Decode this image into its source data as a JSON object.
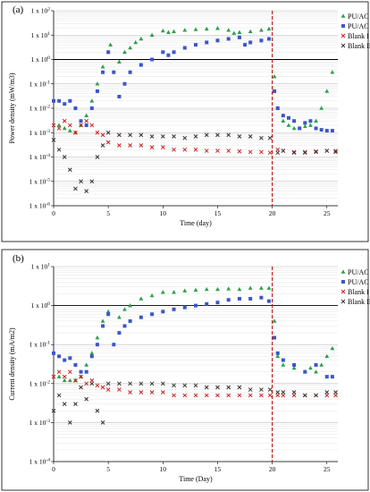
{
  "chart_data": [
    {
      "panel": "(a)",
      "type": "scatter",
      "xlabel": "Time (day)",
      "ylabel": "Power density (mW/m3)",
      "xlim": [
        0,
        26
      ],
      "ylim": [
        1e-06,
        100
      ],
      "yscale": "log",
      "xticks": [
        0,
        5,
        10,
        15,
        20,
        25
      ],
      "yticks": [
        {
          "value": 1e-06,
          "label": "1 x 10-6"
        },
        {
          "value": 1e-05,
          "label": "1 x 10-5"
        },
        {
          "value": 0.0001,
          "label": "1 x 10-4"
        },
        {
          "value": 0.001,
          "label": "1 x 10-3"
        },
        {
          "value": 0.01,
          "label": "1 x 10-2"
        },
        {
          "value": 0.1,
          "label": "1 x 10-1"
        },
        {
          "value": 1,
          "label": "1 x 100"
        },
        {
          "value": 10,
          "label": "1 x 101"
        },
        {
          "value": 100,
          "label": "1 x 102"
        }
      ],
      "grid": true,
      "legend": "top-right",
      "vline": 20,
      "series": [
        {
          "name": "PU/AC I",
          "color": "#2ca04a",
          "marker": "triangle",
          "x": [
            0.5,
            1,
            1.5,
            2,
            2.5,
            3,
            3.5,
            4,
            4.5,
            5,
            5.2,
            6,
            6.5,
            7,
            7.5,
            8,
            9,
            10,
            10.5,
            11,
            12,
            13,
            14,
            15,
            16,
            16.5,
            17,
            18,
            19,
            19.7,
            20.2,
            20.5,
            21,
            21.5,
            22,
            22.5,
            23,
            23.5,
            24,
            24.5,
            25,
            25.5
          ],
          "y": [
            0.002,
            0.0015,
            0.0012,
            0.001,
            0.002,
            0.005,
            0.02,
            0.1,
            0.5,
            2,
            4,
            0.8,
            2,
            3,
            5,
            7,
            10,
            15,
            13,
            14,
            16,
            17,
            18,
            19,
            16,
            12,
            13,
            14,
            16,
            18,
            0.2,
            0.01,
            0.003,
            0.002,
            0.0015,
            0.0015,
            0.0018,
            0.002,
            0.003,
            0.01,
            0.05,
            0.3
          ]
        },
        {
          "name": "PU/AC II",
          "color": "#3c56c8",
          "marker": "square",
          "x": [
            0,
            0.5,
            1,
            1.5,
            2,
            2.5,
            3,
            3.5,
            4,
            4.5,
            5,
            5.5,
            6,
            6.5,
            7,
            8,
            9,
            10,
            10.5,
            11,
            12,
            13,
            14,
            15,
            16,
            17,
            17.5,
            18,
            19,
            19.7,
            20.2,
            20.5,
            21,
            21.5,
            22,
            22.5,
            23,
            23.5,
            24,
            24.5,
            25,
            25.5
          ],
          "y": [
            0.02,
            0.02,
            0.015,
            0.02,
            0.01,
            0.003,
            0.002,
            0.01,
            0.05,
            0.3,
            2,
            0.3,
            0.03,
            0.1,
            0.3,
            0.6,
            1,
            2,
            1.5,
            2,
            3,
            4,
            5,
            6,
            7,
            8,
            4,
            5,
            6,
            7,
            0.05,
            0.01,
            0.005,
            0.004,
            0.003,
            0.0015,
            0.0025,
            0.003,
            0.0015,
            0.0013,
            0.0012,
            0.0012
          ]
        },
        {
          "name": "Blank I",
          "color": "#cc2020",
          "marker": "x",
          "x": [
            0,
            0.5,
            1,
            1.5,
            2,
            2.5,
            3,
            3.5,
            4,
            4.5,
            5,
            6,
            7,
            8,
            9,
            10,
            11,
            12,
            13,
            14,
            15,
            16,
            17,
            18,
            19,
            19.8,
            20.5,
            21,
            22,
            23,
            24,
            25,
            25.8
          ],
          "y": [
            0.002,
            0.0015,
            0.003,
            0.002,
            0.001,
            0.002,
            0.003,
            0.002,
            0.001,
            0.0008,
            0.0004,
            0.0003,
            0.0003,
            0.0003,
            0.00025,
            0.00025,
            0.0002,
            0.0002,
            0.0002,
            0.00018,
            0.00018,
            0.00018,
            0.00017,
            0.00016,
            0.00016,
            0.00015,
            0.0002,
            0.00018,
            0.00016,
            0.00016,
            0.00017,
            0.00018,
            0.00018
          ]
        },
        {
          "name": "Blank II",
          "color": "#333333",
          "marker": "x",
          "x": [
            0,
            0.5,
            1,
            1.5,
            2,
            2.5,
            3,
            3.5,
            4,
            4.5,
            5,
            6,
            7,
            8,
            9,
            10,
            11,
            12,
            13,
            14,
            15,
            16,
            17,
            18,
            19,
            19.8,
            20.5,
            21,
            22,
            23,
            24,
            25,
            25.8
          ],
          "y": [
            0.0005,
            0.0002,
            0.0001,
            3e-05,
            5e-06,
            1e-05,
            4e-06,
            1e-05,
            0.0001,
            0.0003,
            0.001,
            0.0008,
            0.0008,
            0.0008,
            0.0007,
            0.0007,
            0.0007,
            0.0006,
            0.0007,
            0.0008,
            0.0008,
            0.0008,
            0.0007,
            0.0007,
            0.0006,
            0.0006,
            0.00015,
            0.00018,
            0.00015,
            0.00015,
            0.00016,
            0.00018,
            0.00016
          ]
        }
      ]
    },
    {
      "panel": "(b)",
      "type": "scatter",
      "xlabel": "Time (Day)",
      "ylabel": "Current density (mA/m2)",
      "xlim": [
        0,
        26
      ],
      "ylim": [
        0.0001,
        10
      ],
      "yscale": "log",
      "xticks": [
        0,
        5,
        10,
        15,
        20,
        25
      ],
      "yticks": [
        {
          "value": 0.0001,
          "label": "1 x 10-4"
        },
        {
          "value": 0.001,
          "label": "1 x 10-3"
        },
        {
          "value": 0.01,
          "label": "1 x 10-2"
        },
        {
          "value": 0.1,
          "label": "1 x 10-1"
        },
        {
          "value": 1,
          "label": "1 x 100"
        },
        {
          "value": 10,
          "label": "1 x 101"
        }
      ],
      "grid": true,
      "legend": "top-right",
      "vline": 20,
      "series": [
        {
          "name": "PU/AC I",
          "color": "#2ca04a",
          "marker": "triangle",
          "x": [
            0.5,
            1,
            1.5,
            2,
            2.5,
            3,
            3.5,
            4,
            4.5,
            5,
            6,
            6.5,
            7,
            8,
            9,
            10,
            11,
            12,
            13,
            14,
            15,
            16,
            17,
            18,
            19,
            19.7,
            20.2,
            20.5,
            21,
            22,
            23,
            23.5,
            24,
            24.5,
            25,
            25.5
          ],
          "y": [
            0.015,
            0.012,
            0.012,
            0.012,
            0.015,
            0.03,
            0.06,
            0.15,
            0.4,
            0.7,
            0.5,
            0.8,
            1,
            1.5,
            1.8,
            2.2,
            2.2,
            2.4,
            2.5,
            2.6,
            2.6,
            2.7,
            2.6,
            2.8,
            2.8,
            2.8,
            0.4,
            0.05,
            0.03,
            0.025,
            0.02,
            0.025,
            0.02,
            0.03,
            0.05,
            0.08
          ]
        },
        {
          "name": "PU/AC II",
          "color": "#3c56c8",
          "marker": "square",
          "x": [
            0,
            0.5,
            1,
            1.5,
            2,
            2.5,
            3,
            3.5,
            4,
            4.5,
            5,
            5.5,
            6,
            6.5,
            7,
            8,
            9,
            10,
            11,
            12,
            13,
            14,
            15,
            16,
            17,
            18,
            19,
            19.7,
            20.2,
            20.5,
            21,
            22,
            23,
            24,
            25,
            25.5
          ],
          "y": [
            0.06,
            0.05,
            0.04,
            0.045,
            0.03,
            0.02,
            0.02,
            0.05,
            0.1,
            0.3,
            0.6,
            0.1,
            0.2,
            0.3,
            0.4,
            0.5,
            0.6,
            0.7,
            0.8,
            0.9,
            1,
            1.1,
            1.2,
            1.4,
            1.5,
            1.5,
            1.6,
            1.3,
            0.15,
            0.06,
            0.04,
            0.03,
            0.02,
            0.03,
            0.015,
            0.015
          ]
        },
        {
          "name": "Blank I",
          "color": "#cc2020",
          "marker": "x",
          "x": [
            0,
            0.5,
            1,
            1.5,
            2,
            2.5,
            3,
            3.5,
            4,
            4.5,
            5,
            6,
            7,
            8,
            9,
            10,
            11,
            12,
            13,
            14,
            15,
            16,
            17,
            18,
            19,
            19.8,
            20.5,
            21,
            22,
            23,
            24,
            25,
            25.8
          ],
          "y": [
            0.015,
            0.02,
            0.015,
            0.02,
            0.012,
            0.015,
            0.01,
            0.012,
            0.009,
            0.008,
            0.007,
            0.007,
            0.006,
            0.006,
            0.006,
            0.006,
            0.005,
            0.005,
            0.005,
            0.005,
            0.005,
            0.005,
            0.005,
            0.005,
            0.005,
            0.005,
            0.005,
            0.005,
            0.005,
            0.005,
            0.005,
            0.005,
            0.005
          ]
        },
        {
          "name": "Blank II",
          "color": "#333333",
          "marker": "x",
          "x": [
            0,
            0.5,
            1,
            1.5,
            2,
            2.5,
            3,
            3.5,
            4,
            4.5,
            5,
            6,
            7,
            8,
            9,
            10,
            11,
            12,
            13,
            14,
            15,
            16,
            17,
            18,
            19,
            19.8,
            20.5,
            21,
            22,
            23,
            24,
            25,
            25.8
          ],
          "y": [
            0.002,
            0.005,
            0.003,
            0.001,
            0.003,
            0.008,
            0.004,
            0.01,
            0.002,
            0.001,
            0.01,
            0.01,
            0.01,
            0.01,
            0.01,
            0.01,
            0.009,
            0.009,
            0.009,
            0.008,
            0.008,
            0.008,
            0.008,
            0.007,
            0.007,
            0.007,
            0.006,
            0.006,
            0.006,
            0.005,
            0.005,
            0.006,
            0.006
          ]
        }
      ]
    }
  ]
}
